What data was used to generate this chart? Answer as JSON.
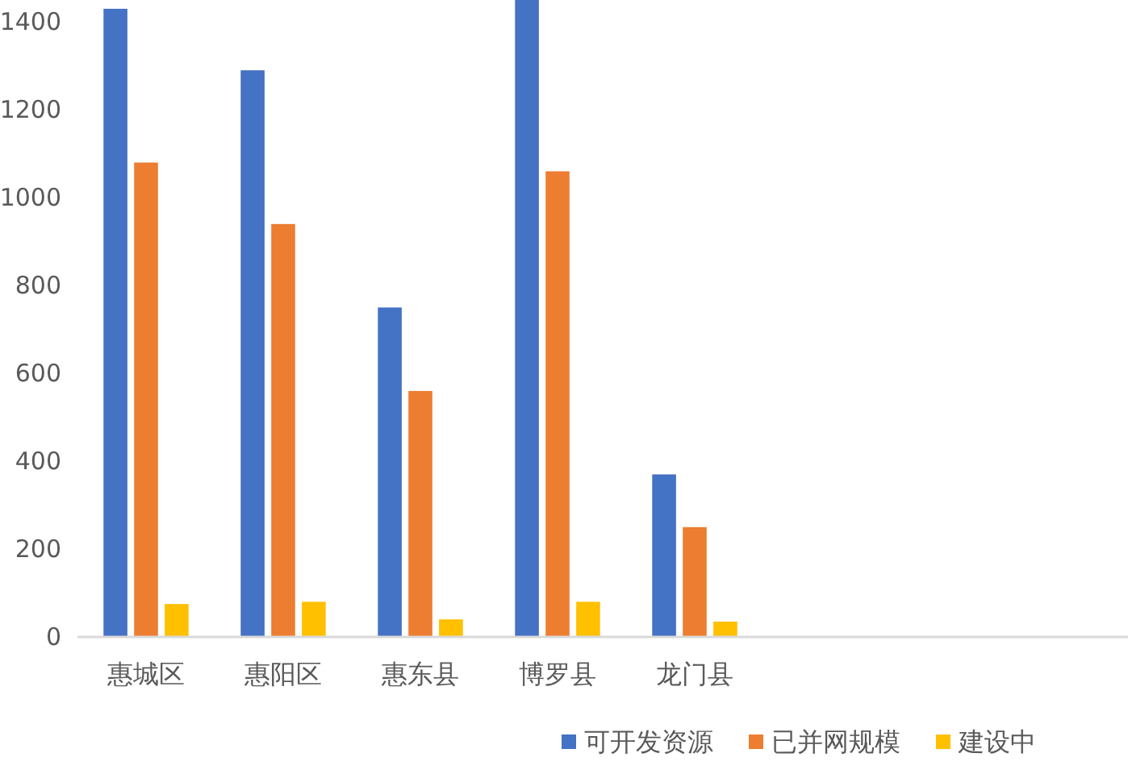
{
  "chart_data": {
    "type": "bar",
    "categories": [
      "惠城区",
      "惠阳区",
      "惠东县",
      "博罗县",
      "龙门县"
    ],
    "series": [
      {
        "name": "可开发资源",
        "color": "#4472c4",
        "values": [
          1430,
          1290,
          750,
          1450,
          370
        ]
      },
      {
        "name": "已并网规模",
        "color": "#ed7d31",
        "values": [
          1080,
          940,
          560,
          1060,
          250
        ]
      },
      {
        "name": "建设中",
        "color": "#ffc000",
        "values": [
          75,
          80,
          40,
          80,
          35
        ]
      }
    ],
    "ylim": [
      0,
      1450
    ],
    "yticks": [
      0,
      200,
      400,
      600,
      800,
      1000,
      1200,
      1400
    ],
    "legend": "bottom"
  }
}
